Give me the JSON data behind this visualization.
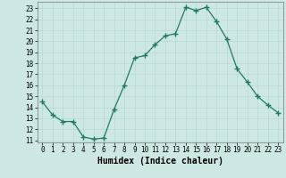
{
  "x": [
    0,
    1,
    2,
    3,
    4,
    5,
    6,
    7,
    8,
    9,
    10,
    11,
    12,
    13,
    14,
    15,
    16,
    17,
    18,
    19,
    20,
    21,
    22,
    23
  ],
  "y": [
    14.5,
    13.3,
    12.7,
    12.7,
    11.3,
    11.1,
    11.2,
    13.8,
    16.0,
    18.5,
    18.7,
    19.7,
    20.5,
    20.7,
    23.1,
    22.8,
    23.1,
    21.8,
    20.2,
    17.5,
    16.3,
    15.0,
    14.2,
    13.5
  ],
  "xlabel": "Humidex (Indice chaleur)",
  "ylim": [
    10.8,
    23.6
  ],
  "xlim": [
    -0.5,
    23.5
  ],
  "yticks": [
    11,
    12,
    13,
    14,
    15,
    16,
    17,
    18,
    19,
    20,
    21,
    22,
    23
  ],
  "xticks": [
    0,
    1,
    2,
    3,
    4,
    5,
    6,
    7,
    8,
    9,
    10,
    11,
    12,
    13,
    14,
    15,
    16,
    17,
    18,
    19,
    20,
    21,
    22,
    23
  ],
  "line_color": "#1e7a64",
  "marker_color": "#1e7a64",
  "bg_color": "#cde8e4",
  "grid_color": "#b8d8d4",
  "label_color": "#000000",
  "xlabel_fontsize": 7,
  "tick_fontsize": 5.5
}
